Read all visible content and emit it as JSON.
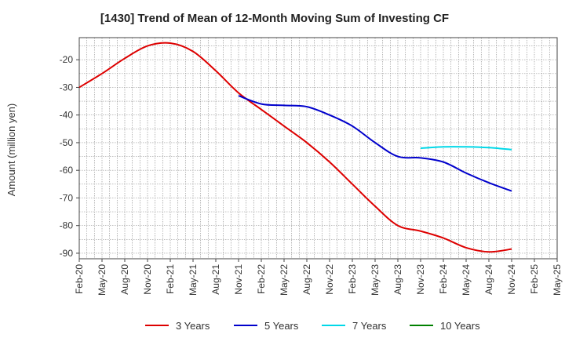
{
  "chart_data": {
    "type": "line",
    "title": "[1430]  Trend of Mean of 12-Month Moving Sum of Investing CF",
    "xlabel": "",
    "ylabel": "Amount (million yen)",
    "ylim": [
      -92,
      -12
    ],
    "yticks": [
      -20,
      -30,
      -40,
      -50,
      -60,
      -70,
      -80,
      -90
    ],
    "grid": true,
    "legend_position": "bottom",
    "categories": [
      "Feb-20",
      "May-20",
      "Aug-20",
      "Nov-20",
      "Feb-21",
      "May-21",
      "Aug-21",
      "Nov-21",
      "Feb-22",
      "May-22",
      "Aug-22",
      "Nov-22",
      "Feb-23",
      "May-23",
      "Aug-23",
      "Nov-23",
      "Feb-24",
      "May-24",
      "Aug-24",
      "Nov-24",
      "Feb-25",
      "May-25"
    ],
    "series": [
      {
        "name": "3 Years",
        "color": "#dd0000",
        "values": [
          -30,
          -25,
          -19.5,
          -15,
          -14,
          -17,
          -24,
          -32,
          -38,
          -44,
          -50,
          -57,
          -65,
          -73,
          -80,
          -82,
          -84.5,
          -88,
          -89.5,
          -88.5,
          null,
          null
        ]
      },
      {
        "name": "5 Years",
        "color": "#0000cc",
        "values": [
          null,
          null,
          null,
          null,
          null,
          null,
          null,
          -33,
          -36,
          -36.5,
          -37,
          -40,
          -44,
          -50,
          -55,
          -55.5,
          -57,
          -61,
          -64.5,
          -67.5,
          null,
          null
        ]
      },
      {
        "name": "7 Years",
        "color": "#00d8e8",
        "values": [
          null,
          null,
          null,
          null,
          null,
          null,
          null,
          null,
          null,
          null,
          null,
          null,
          null,
          null,
          null,
          -52,
          -51.5,
          -51.5,
          -51.8,
          -52.5,
          null,
          null
        ]
      },
      {
        "name": "10 Years",
        "color": "#008000",
        "values": [
          null,
          null,
          null,
          null,
          null,
          null,
          null,
          null,
          null,
          null,
          null,
          null,
          null,
          null,
          null,
          null,
          null,
          null,
          null,
          null,
          null,
          null
        ]
      }
    ]
  }
}
